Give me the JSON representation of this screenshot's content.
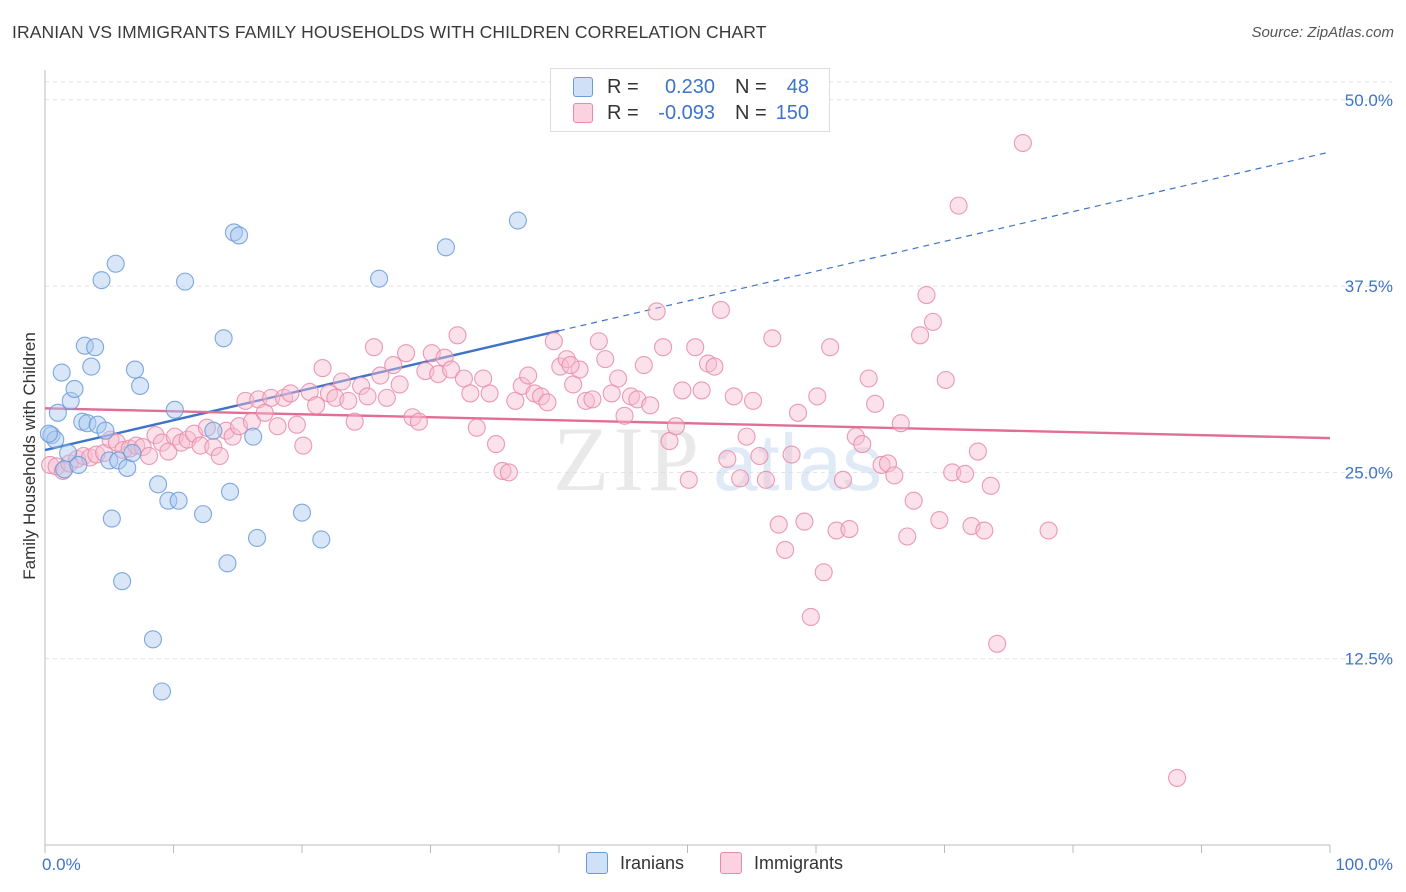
{
  "title": "IRANIAN VS IMMIGRANTS FAMILY HOUSEHOLDS WITH CHILDREN CORRELATION CHART",
  "source": "Source: ZipAtlas.com",
  "watermark": {
    "zip": "ZIP",
    "atlas": "atlas"
  },
  "legend": {
    "rows": [
      {
        "r_label": "R =",
        "r_value": "0.230",
        "n_label": "N =",
        "n_value": "48",
        "color": "#a9c8f0",
        "stroke": "#6a9ad8"
      },
      {
        "r_label": "R =",
        "r_value": "-0.093",
        "n_label": "N =",
        "n_value": "150",
        "color": "#f7bcd0",
        "stroke": "#e88aa8"
      }
    ]
  },
  "bottom_legend": [
    {
      "label": "Iranians",
      "color": "#a9c8f0",
      "stroke": "#6a9ad8"
    },
    {
      "label": "Immigrants",
      "color": "#f7bcd0",
      "stroke": "#e88aa8"
    }
  ],
  "chart_data": {
    "type": "scatter",
    "title": "IRANIAN VS IMMIGRANTS FAMILY HOUSEHOLDS WITH CHILDREN CORRELATION CHART",
    "xlabel": "",
    "ylabel": "Family Households with Children",
    "xlim": [
      0,
      100
    ],
    "ylim": [
      0,
      52
    ],
    "x_tick_labels": [
      "0.0%",
      "100.0%"
    ],
    "y_ticks": [
      12.5,
      25.0,
      37.5,
      50.0
    ],
    "y_tick_labels": [
      "12.5%",
      "25.0%",
      "37.5%",
      "50.0%"
    ],
    "grid": true,
    "legend_position": "top-center",
    "series": [
      {
        "name": "Iranians",
        "color": "#6a9ad8",
        "fill": "#a9c8f0",
        "trend": {
          "x0": 0,
          "y0": 26.5,
          "x1": 40,
          "y1": 34.5,
          "dashed_to_x": 100,
          "dashed_to_y": 46.5
        },
        "points": [
          [
            0.5,
            27.5
          ],
          [
            0.8,
            27.2
          ],
          [
            1.0,
            29.0
          ],
          [
            1.3,
            31.7
          ],
          [
            1.5,
            25.2
          ],
          [
            1.8,
            26.3
          ],
          [
            2.0,
            29.8
          ],
          [
            2.3,
            30.6
          ],
          [
            2.6,
            25.5
          ],
          [
            2.9,
            28.4
          ],
          [
            3.1,
            33.5
          ],
          [
            3.3,
            28.3
          ],
          [
            3.6,
            32.1
          ],
          [
            3.9,
            33.4
          ],
          [
            4.1,
            28.2
          ],
          [
            4.4,
            37.9
          ],
          [
            4.7,
            27.8
          ],
          [
            5.0,
            25.8
          ],
          [
            5.2,
            21.9
          ],
          [
            5.5,
            39.0
          ],
          [
            5.7,
            25.8
          ],
          [
            6.0,
            17.7
          ],
          [
            6.4,
            25.3
          ],
          [
            6.8,
            26.3
          ],
          [
            7.0,
            31.9
          ],
          [
            7.4,
            30.8
          ],
          [
            8.4,
            13.8
          ],
          [
            8.8,
            24.2
          ],
          [
            9.1,
            10.3
          ],
          [
            9.6,
            23.1
          ],
          [
            10.1,
            29.2
          ],
          [
            10.4,
            23.1
          ],
          [
            10.9,
            37.8
          ],
          [
            12.3,
            22.2
          ],
          [
            13.1,
            27.8
          ],
          [
            13.9,
            34.0
          ],
          [
            14.2,
            18.9
          ],
          [
            14.4,
            23.7
          ],
          [
            14.7,
            41.1
          ],
          [
            15.1,
            40.9
          ],
          [
            16.2,
            27.4
          ],
          [
            16.5,
            20.6
          ],
          [
            20.0,
            22.3
          ],
          [
            21.5,
            20.5
          ],
          [
            26.0,
            38.0
          ],
          [
            31.2,
            40.1
          ],
          [
            36.8,
            41.9
          ],
          [
            0.3,
            27.6
          ]
        ]
      },
      {
        "name": "Immigrants",
        "color": "#e88aa8",
        "fill": "#f7bcd0",
        "trend": {
          "x0": 0,
          "y0": 29.3,
          "x1": 100,
          "y1": 27.3
        },
        "points": [
          [
            0.4,
            25.5
          ],
          [
            0.9,
            25.4
          ],
          [
            1.4,
            25.1
          ],
          [
            1.9,
            25.6
          ],
          [
            2.5,
            25.9
          ],
          [
            3.0,
            26.1
          ],
          [
            3.5,
            26.0
          ],
          [
            4.0,
            26.2
          ],
          [
            4.6,
            26.3
          ],
          [
            5.1,
            27.2
          ],
          [
            5.6,
            27.0
          ],
          [
            6.1,
            26.5
          ],
          [
            6.6,
            26.6
          ],
          [
            7.1,
            26.8
          ],
          [
            7.6,
            26.7
          ],
          [
            8.1,
            26.1
          ],
          [
            8.6,
            27.5
          ],
          [
            9.1,
            27.0
          ],
          [
            9.6,
            26.4
          ],
          [
            10.1,
            27.4
          ],
          [
            10.6,
            27.0
          ],
          [
            11.1,
            27.2
          ],
          [
            11.6,
            27.6
          ],
          [
            12.1,
            26.8
          ],
          [
            12.6,
            28.0
          ],
          [
            13.1,
            26.7
          ],
          [
            13.6,
            26.1
          ],
          [
            14.1,
            27.8
          ],
          [
            14.6,
            27.4
          ],
          [
            15.1,
            28.1
          ],
          [
            15.6,
            29.8
          ],
          [
            16.1,
            28.4
          ],
          [
            16.6,
            29.9
          ],
          [
            17.1,
            29.0
          ],
          [
            17.6,
            30.0
          ],
          [
            18.1,
            28.1
          ],
          [
            18.6,
            30.0
          ],
          [
            19.1,
            30.3
          ],
          [
            19.6,
            28.2
          ],
          [
            20.1,
            26.8
          ],
          [
            20.6,
            30.4
          ],
          [
            21.1,
            29.5
          ],
          [
            21.6,
            32.0
          ],
          [
            22.1,
            30.3
          ],
          [
            22.6,
            30.0
          ],
          [
            23.1,
            31.1
          ],
          [
            23.6,
            29.8
          ],
          [
            24.1,
            28.4
          ],
          [
            24.6,
            30.8
          ],
          [
            25.1,
            30.1
          ],
          [
            25.6,
            33.4
          ],
          [
            26.1,
            31.5
          ],
          [
            26.6,
            30.0
          ],
          [
            27.1,
            32.2
          ],
          [
            27.6,
            30.9
          ],
          [
            28.1,
            33.0
          ],
          [
            28.6,
            28.7
          ],
          [
            29.1,
            28.4
          ],
          [
            29.6,
            31.8
          ],
          [
            30.1,
            33.0
          ],
          [
            30.6,
            31.6
          ],
          [
            31.1,
            32.7
          ],
          [
            31.6,
            31.9
          ],
          [
            32.1,
            34.2
          ],
          [
            32.6,
            31.3
          ],
          [
            33.1,
            30.3
          ],
          [
            33.6,
            28.0
          ],
          [
            34.1,
            31.3
          ],
          [
            34.6,
            30.3
          ],
          [
            35.1,
            26.9
          ],
          [
            35.6,
            25.1
          ],
          [
            36.1,
            25.0
          ],
          [
            36.6,
            29.8
          ],
          [
            37.1,
            30.8
          ],
          [
            37.6,
            31.5
          ],
          [
            38.1,
            30.3
          ],
          [
            38.6,
            30.1
          ],
          [
            39.1,
            29.7
          ],
          [
            39.6,
            33.8
          ],
          [
            40.1,
            32.1
          ],
          [
            40.6,
            32.6
          ],
          [
            41.1,
            30.9
          ],
          [
            41.6,
            31.9
          ],
          [
            42.1,
            29.8
          ],
          [
            42.6,
            29.9
          ],
          [
            43.1,
            33.8
          ],
          [
            43.6,
            32.6
          ],
          [
            44.1,
            30.3
          ],
          [
            44.6,
            31.3
          ],
          [
            45.1,
            28.8
          ],
          [
            45.6,
            30.1
          ],
          [
            46.1,
            29.9
          ],
          [
            46.6,
            32.2
          ],
          [
            47.1,
            29.5
          ],
          [
            47.6,
            35.8
          ],
          [
            48.1,
            33.4
          ],
          [
            48.6,
            27.1
          ],
          [
            49.1,
            28.1
          ],
          [
            49.6,
            30.5
          ],
          [
            50.1,
            24.5
          ],
          [
            50.6,
            33.4
          ],
          [
            51.1,
            30.5
          ],
          [
            51.6,
            32.3
          ],
          [
            52.1,
            32.1
          ],
          [
            52.6,
            35.9
          ],
          [
            53.1,
            25.9
          ],
          [
            53.6,
            30.1
          ],
          [
            54.1,
            24.6
          ],
          [
            54.6,
            27.4
          ],
          [
            55.1,
            29.8
          ],
          [
            55.6,
            26.1
          ],
          [
            56.1,
            24.5
          ],
          [
            56.6,
            34.0
          ],
          [
            57.1,
            21.5
          ],
          [
            57.6,
            19.8
          ],
          [
            58.1,
            26.2
          ],
          [
            58.6,
            29.0
          ],
          [
            59.1,
            21.7
          ],
          [
            59.6,
            15.3
          ],
          [
            60.1,
            30.1
          ],
          [
            60.6,
            18.3
          ],
          [
            61.1,
            33.4
          ],
          [
            61.6,
            21.1
          ],
          [
            62.1,
            24.5
          ],
          [
            62.6,
            21.2
          ],
          [
            63.1,
            27.4
          ],
          [
            63.6,
            26.9
          ],
          [
            64.1,
            31.3
          ],
          [
            64.6,
            29.6
          ],
          [
            65.1,
            25.5
          ],
          [
            65.6,
            25.6
          ],
          [
            66.1,
            24.8
          ],
          [
            66.6,
            28.3
          ],
          [
            67.1,
            20.7
          ],
          [
            67.6,
            23.1
          ],
          [
            68.1,
            34.2
          ],
          [
            68.6,
            36.9
          ],
          [
            69.1,
            35.1
          ],
          [
            69.6,
            21.8
          ],
          [
            70.1,
            31.2
          ],
          [
            70.6,
            25.0
          ],
          [
            71.1,
            42.9
          ],
          [
            71.6,
            24.9
          ],
          [
            72.1,
            21.4
          ],
          [
            72.6,
            26.4
          ],
          [
            73.1,
            21.1
          ],
          [
            73.6,
            24.1
          ],
          [
            74.1,
            13.5
          ],
          [
            76.1,
            47.1
          ],
          [
            78.1,
            21.1
          ],
          [
            88.1,
            4.5
          ],
          [
            40.9,
            32.2
          ]
        ]
      }
    ]
  }
}
